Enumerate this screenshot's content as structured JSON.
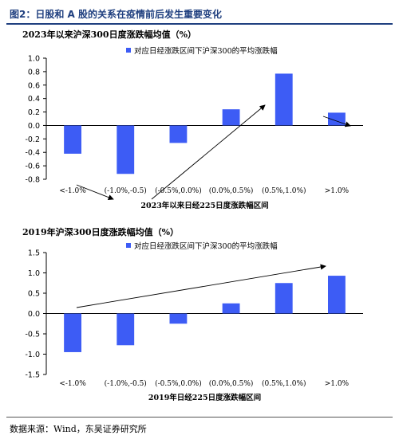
{
  "figure": {
    "title": "图2：日股和 A 股的关系在疫情前后发生重要变化",
    "source": "数据来源：Wind，东吴证券研究所"
  },
  "chart_data": [
    {
      "type": "bar",
      "title": "2023年以来沪深300日度涨跌幅均值（%）",
      "xlabel": "2023年以来日经225日度涨跌幅区间",
      "ylabel": "",
      "categories": [
        "<-1.0%",
        "(-1.0%,-0.5)",
        "(-0.5%,0.0%)",
        "(0.0%,0.5%)",
        "(0.5%,1.0%)",
        ">1.0%"
      ],
      "series": [
        {
          "name": "对应日经涨跌区间下沪深300的平均涨跌幅",
          "values": [
            -0.42,
            -0.72,
            -0.26,
            0.24,
            0.77,
            0.19
          ]
        }
      ],
      "ylim": [
        -0.8,
        1.0
      ],
      "yticks": [
        1.0,
        0.8,
        0.6,
        0.4,
        0.2,
        0.0,
        -0.2,
        -0.4,
        -0.6,
        -0.8
      ],
      "ytick_labels": [
        "1.0",
        "0.8",
        "0.6",
        "0.4",
        "0.2",
        "0.0",
        "-0.2",
        "-0.4",
        "-0.6",
        "-0.8"
      ],
      "grid": false,
      "legend": "top-center",
      "bar_color": "#3d5cf5",
      "annotations": [
        "arrow from category 1 down to category 2",
        "arrow from category 2 up to category 5",
        "arrow from category 5 down to category 6"
      ]
    },
    {
      "type": "bar",
      "title": "2019年沪深300日度涨跌幅均值（%）",
      "xlabel": "2019年日经225日度涨跌幅区间",
      "ylabel": "",
      "categories": [
        "<-1.0%",
        "(-1.0%,-0.5)",
        "(-0.5%,0.0%)",
        "(0.0%,0.5%)",
        "(0.5%,1.0%)",
        ">1.0%"
      ],
      "series": [
        {
          "name": "对应日经涨跌区间下沪深300的平均涨跌幅",
          "values": [
            -0.95,
            -0.78,
            -0.25,
            0.25,
            0.75,
            0.93
          ]
        }
      ],
      "ylim": [
        -1.5,
        1.5
      ],
      "yticks": [
        1.5,
        1.0,
        0.5,
        0.0,
        -0.5,
        -1.0,
        -1.5
      ],
      "ytick_labels": [
        "1.5",
        "1.0",
        "0.5",
        "0.0",
        "-0.5",
        "-1.0",
        "-1.5"
      ],
      "grid": false,
      "legend": "top-center",
      "bar_color": "#3d5cf5",
      "annotations": [
        "arrow rising from category 1 to category 6"
      ]
    }
  ]
}
